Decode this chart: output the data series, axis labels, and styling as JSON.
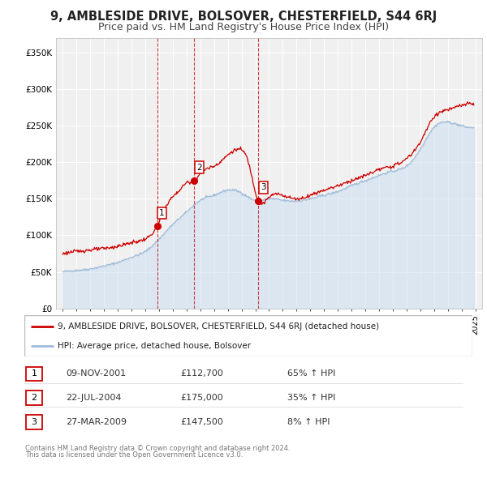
{
  "title": "9, AMBLESIDE DRIVE, BOLSOVER, CHESTERFIELD, S44 6RJ",
  "subtitle": "Price paid vs. HM Land Registry's House Price Index (HPI)",
  "legend_line1": "9, AMBLESIDE DRIVE, BOLSOVER, CHESTERFIELD, S44 6RJ (detached house)",
  "legend_line2": "HPI: Average price, detached house, Bolsover",
  "footer1": "Contains HM Land Registry data © Crown copyright and database right 2024.",
  "footer2": "This data is licensed under the Open Government Licence v3.0.",
  "transactions": [
    {
      "num": 1,
      "date": "09-NOV-2001",
      "date_dec": 2001.86,
      "price": 112700,
      "pct": "65%",
      "dir": "↑",
      "label": "£112,700"
    },
    {
      "num": 2,
      "date": "22-JUL-2004",
      "date_dec": 2004.56,
      "price": 175000,
      "pct": "35%",
      "dir": "↑",
      "label": "£175,000"
    },
    {
      "num": 3,
      "date": "27-MAR-2009",
      "date_dec": 2009.23,
      "price": 147500,
      "pct": "8%",
      "dir": "↑",
      "label": "£147,500"
    }
  ],
  "hpi_color": "#a0bcd8",
  "hpi_fill_color": "#c8ddf0",
  "price_color": "#cc0000",
  "marker_color": "#cc0000",
  "vline_color": "#cc0000",
  "background_color": "#f0f0f0",
  "grid_color": "#ffffff",
  "ylim": [
    0,
    370000
  ],
  "yticks": [
    0,
    50000,
    100000,
    150000,
    200000,
    250000,
    300000,
    350000
  ],
  "xlim_start": 1994.5,
  "xlim_end": 2025.5,
  "title_fontsize": 10.5,
  "subtitle_fontsize": 9.0,
  "tick_fontsize": 7.0,
  "ytick_fontsize": 7.5,
  "legend_fontsize": 7.5,
  "table_fontsize": 8.0,
  "footer_fontsize": 6.0
}
